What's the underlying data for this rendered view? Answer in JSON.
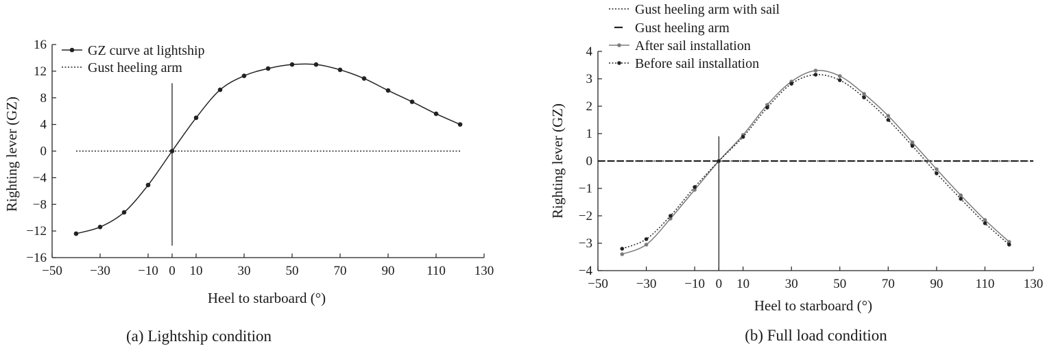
{
  "chart_data": [
    {
      "type": "line",
      "caption": "(a) Lightship condition",
      "xlabel": "Heel to starboard (°)",
      "ylabel": "Righting lever (GZ)",
      "xlim": [
        -50,
        130
      ],
      "ylim": [
        -16,
        16
      ],
      "xticks": [
        -50,
        -30,
        -10,
        0,
        10,
        30,
        50,
        70,
        90,
        110,
        130
      ],
      "xtick_labels": [
        "−50",
        "−30",
        "−10",
        "0",
        "10",
        "30",
        "50",
        "70",
        "90",
        "110",
        "130"
      ],
      "yticks": [
        -16,
        -12,
        -8,
        -4,
        0,
        4,
        8,
        12,
        16
      ],
      "ytick_labels": [
        "−16",
        "−12",
        "−8",
        "−4",
        "0",
        "4",
        "8",
        "12",
        "16"
      ],
      "legend_position": "top-left",
      "series": [
        {
          "name": "GZ curve at lightship",
          "style": "solid-markers",
          "color": "#222222",
          "x": [
            -40,
            -30,
            -20,
            -10,
            0,
            10,
            20,
            30,
            40,
            50,
            60,
            70,
            80,
            90,
            100,
            110,
            120
          ],
          "y": [
            -12.4,
            -11.4,
            -9.2,
            -5.1,
            0,
            5.0,
            9.2,
            11.3,
            12.4,
            13.0,
            13.0,
            12.2,
            10.9,
            9.1,
            7.4,
            5.6,
            4.0
          ]
        },
        {
          "name": "Gust heeling arm",
          "style": "dotted",
          "color": "#222222",
          "x": [
            -40,
            120
          ],
          "y": [
            0,
            0
          ]
        }
      ]
    },
    {
      "type": "line",
      "caption": "(b) Full load condition",
      "xlabel": "Heel to starboard (°)",
      "ylabel": "Righting lever (GZ)",
      "xlim": [
        -50,
        130
      ],
      "ylim": [
        -4,
        4
      ],
      "xticks": [
        -50,
        -30,
        -10,
        0,
        10,
        30,
        50,
        70,
        90,
        110,
        130
      ],
      "xtick_labels": [
        "−50",
        "−30",
        "−10",
        "0",
        "10",
        "30",
        "50",
        "70",
        "90",
        "110",
        "130"
      ],
      "yticks": [
        -4,
        -3,
        -2,
        -1,
        0,
        1,
        2,
        3,
        4
      ],
      "ytick_labels": [
        "−4",
        "−3",
        "−2",
        "−1",
        "0",
        "1",
        "2",
        "3",
        "4"
      ],
      "legend_position": "top-left",
      "series": [
        {
          "name": "Gust heeling arm with sail",
          "style": "dotted",
          "color": "#222222",
          "x": [
            -50,
            130
          ],
          "y": [
            0,
            0
          ]
        },
        {
          "name": "Gust heeling arm",
          "style": "dashed",
          "color": "#222222",
          "x": [
            -50,
            130
          ],
          "y": [
            0,
            0
          ]
        },
        {
          "name": "After sail installation",
          "style": "solid-markers",
          "color": "#7a7a7a",
          "x": [
            -40,
            -30,
            -20,
            -10,
            0,
            10,
            20,
            30,
            40,
            50,
            60,
            70,
            80,
            90,
            100,
            110,
            120
          ],
          "y": [
            -3.4,
            -3.05,
            -2.1,
            -1.05,
            0,
            0.95,
            2.05,
            2.9,
            3.3,
            3.1,
            2.45,
            1.65,
            0.68,
            -0.3,
            -1.25,
            -2.15,
            -2.95
          ]
        },
        {
          "name": "Before sail installation",
          "style": "dotted-markers",
          "color": "#222222",
          "x": [
            -40,
            -30,
            -20,
            -10,
            0,
            10,
            20,
            30,
            40,
            50,
            60,
            70,
            80,
            90,
            100,
            110,
            120
          ],
          "y": [
            -3.2,
            -2.85,
            -2.0,
            -0.95,
            0,
            0.88,
            1.95,
            2.82,
            3.15,
            2.95,
            2.32,
            1.5,
            0.55,
            -0.45,
            -1.38,
            -2.27,
            -3.05
          ]
        }
      ]
    }
  ]
}
